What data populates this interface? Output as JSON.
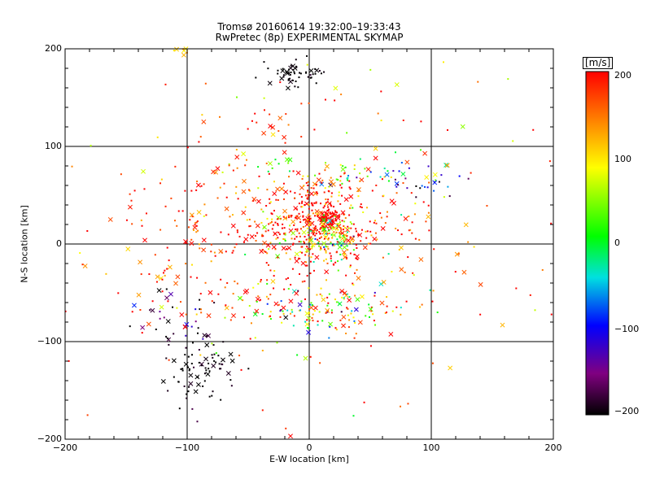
{
  "chart_data": {
    "type": "scatter",
    "title": "Tromsø 20160614 19:32:00–19:33:43",
    "subtitle": "RwPretec (8p) EXPERIMENTAL SKYMAP",
    "xlabel": "E-W location [km]",
    "ylabel": "N-S location [km]",
    "xlim": [
      -200,
      200
    ],
    "ylim": [
      -200,
      200
    ],
    "xticks": [
      "−200",
      "−100",
      "0",
      "100",
      "200"
    ],
    "yticks": [
      "200",
      "100",
      "0",
      "−100",
      "−200"
    ],
    "grid": true,
    "colorbar": {
      "label": "[m/s]",
      "range": [
        -200,
        200
      ],
      "ticks": [
        "200",
        "100",
        "0",
        "−100",
        "−200"
      ],
      "colors": [
        "#000000",
        "#800080",
        "#0000ff",
        "#00e0e0",
        "#00ff00",
        "#ffff00",
        "#ff8000",
        "#ff0000"
      ]
    },
    "clusters": [
      {
        "x": 0,
        "y": 20,
        "sx": 25,
        "sy": 22,
        "v": 200,
        "vs": 90,
        "n": 380
      },
      {
        "x": 15,
        "y": 25,
        "sx": 5,
        "sy": 5,
        "v": 200,
        "vs": 5,
        "n": 70
      },
      {
        "x": 20,
        "y": 5,
        "sx": 12,
        "sy": 12,
        "v": 30,
        "vs": 70,
        "n": 70
      },
      {
        "x": -10,
        "y": 175,
        "sx": 12,
        "sy": 7,
        "v": -200,
        "vs": 5,
        "n": 55
      },
      {
        "x": -90,
        "y": -125,
        "sx": 14,
        "sy": 20,
        "v": -200,
        "vs": 10,
        "n": 80
      },
      {
        "x": -105,
        "y": -80,
        "sx": 18,
        "sy": 15,
        "v": -170,
        "vs": 50,
        "n": 30
      },
      {
        "x": -80,
        "y": 40,
        "sx": 35,
        "sy": 40,
        "v": 170,
        "vs": 50,
        "n": 110
      },
      {
        "x": 10,
        "y": -65,
        "sx": 35,
        "sy": 14,
        "v": 100,
        "vs": 120,
        "n": 150
      },
      {
        "x": 30,
        "y": 70,
        "sx": 15,
        "sy": 8,
        "v": 50,
        "vs": 100,
        "n": 35
      },
      {
        "x": 85,
        "y": 65,
        "sx": 22,
        "sy": 8,
        "v": -60,
        "vs": 120,
        "n": 40
      },
      {
        "x": 60,
        "y": 30,
        "sx": 30,
        "sy": 20,
        "v": 170,
        "vs": 60,
        "n": 50
      },
      {
        "x": 0,
        "y": 0,
        "sx": 100,
        "sy": 100,
        "v": 160,
        "vs": 70,
        "n": 230
      },
      {
        "x": -115,
        "y": -30,
        "sx": 30,
        "sy": 40,
        "v": 180,
        "vs": 30,
        "n": 50
      },
      {
        "x": -30,
        "y": 130,
        "sx": 20,
        "sy": 15,
        "v": 190,
        "vs": 20,
        "n": 15
      },
      {
        "x": -105,
        "y": 198,
        "sx": 4,
        "sy": 2,
        "v": 120,
        "vs": 20,
        "n": 8
      },
      {
        "x": -25,
        "y": 80,
        "sx": 10,
        "sy": 5,
        "v": 20,
        "vs": 30,
        "n": 10
      }
    ]
  }
}
